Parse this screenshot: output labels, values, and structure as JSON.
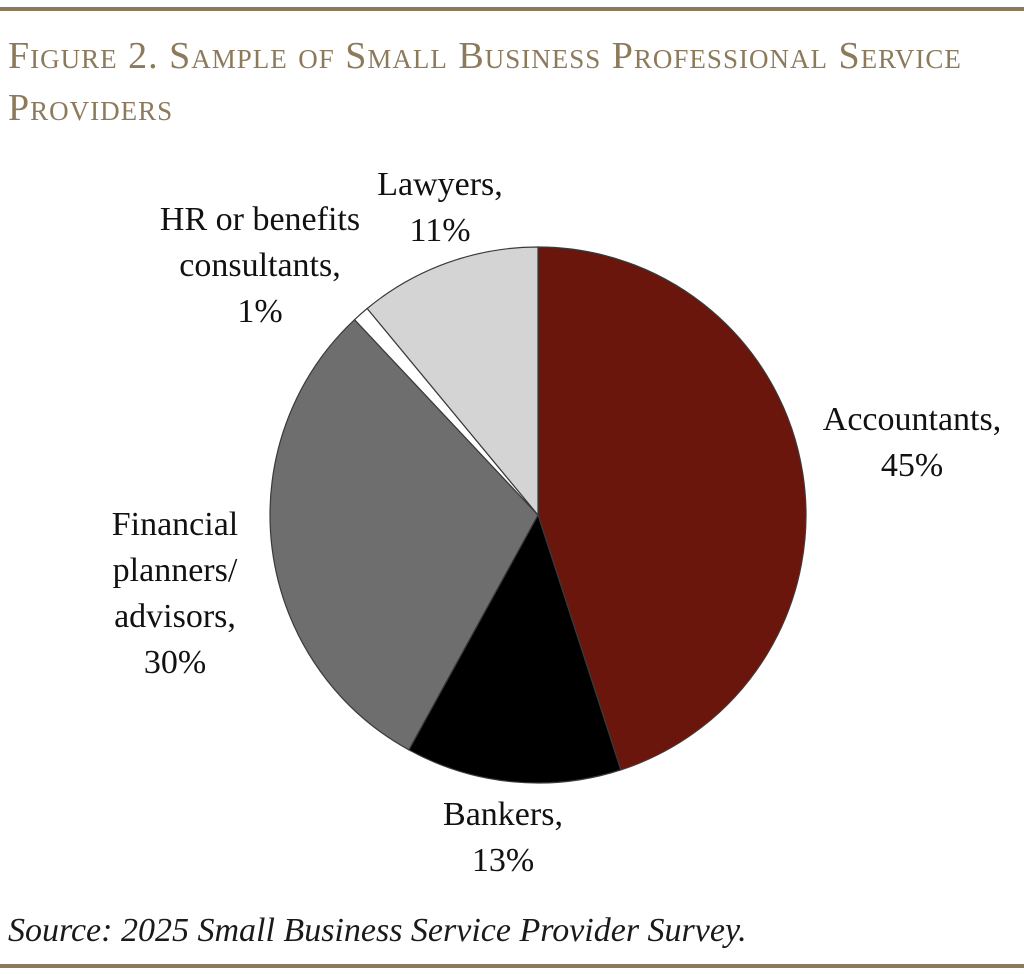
{
  "title": "Figure 2. Sample of Small Business Professional Service Providers",
  "source": "Source: 2025 Small Business Service Provider Survey.",
  "colors": {
    "rule": "#8c7a5b",
    "title": "#8c7a5b",
    "stroke": "#3a3a3a"
  },
  "chart_data": {
    "type": "pie",
    "start": "12 o'clock",
    "direction": "clockwise",
    "legend": "none",
    "slices": [
      {
        "label_lines": [
          "Accountants,",
          "45%"
        ],
        "category": "Accountants",
        "value": 45,
        "color": "#6b160c"
      },
      {
        "label_lines": [
          "Bankers,",
          "13%"
        ],
        "category": "Bankers",
        "value": 13,
        "color": "#000000"
      },
      {
        "label_lines": [
          "Financial",
          "planners/",
          "advisors,",
          "30%"
        ],
        "category": "Financial planners/advisors",
        "value": 30,
        "color": "#6e6e6e"
      },
      {
        "label_lines": [
          "HR or benefits",
          "consultants,",
          "1%"
        ],
        "category": "HR or benefits consultants",
        "value": 1,
        "color": "#ffffff"
      },
      {
        "label_lines": [
          "Lawyers,",
          "11%"
        ],
        "category": "Lawyers",
        "value": 11,
        "color": "#d4d4d4"
      }
    ]
  }
}
